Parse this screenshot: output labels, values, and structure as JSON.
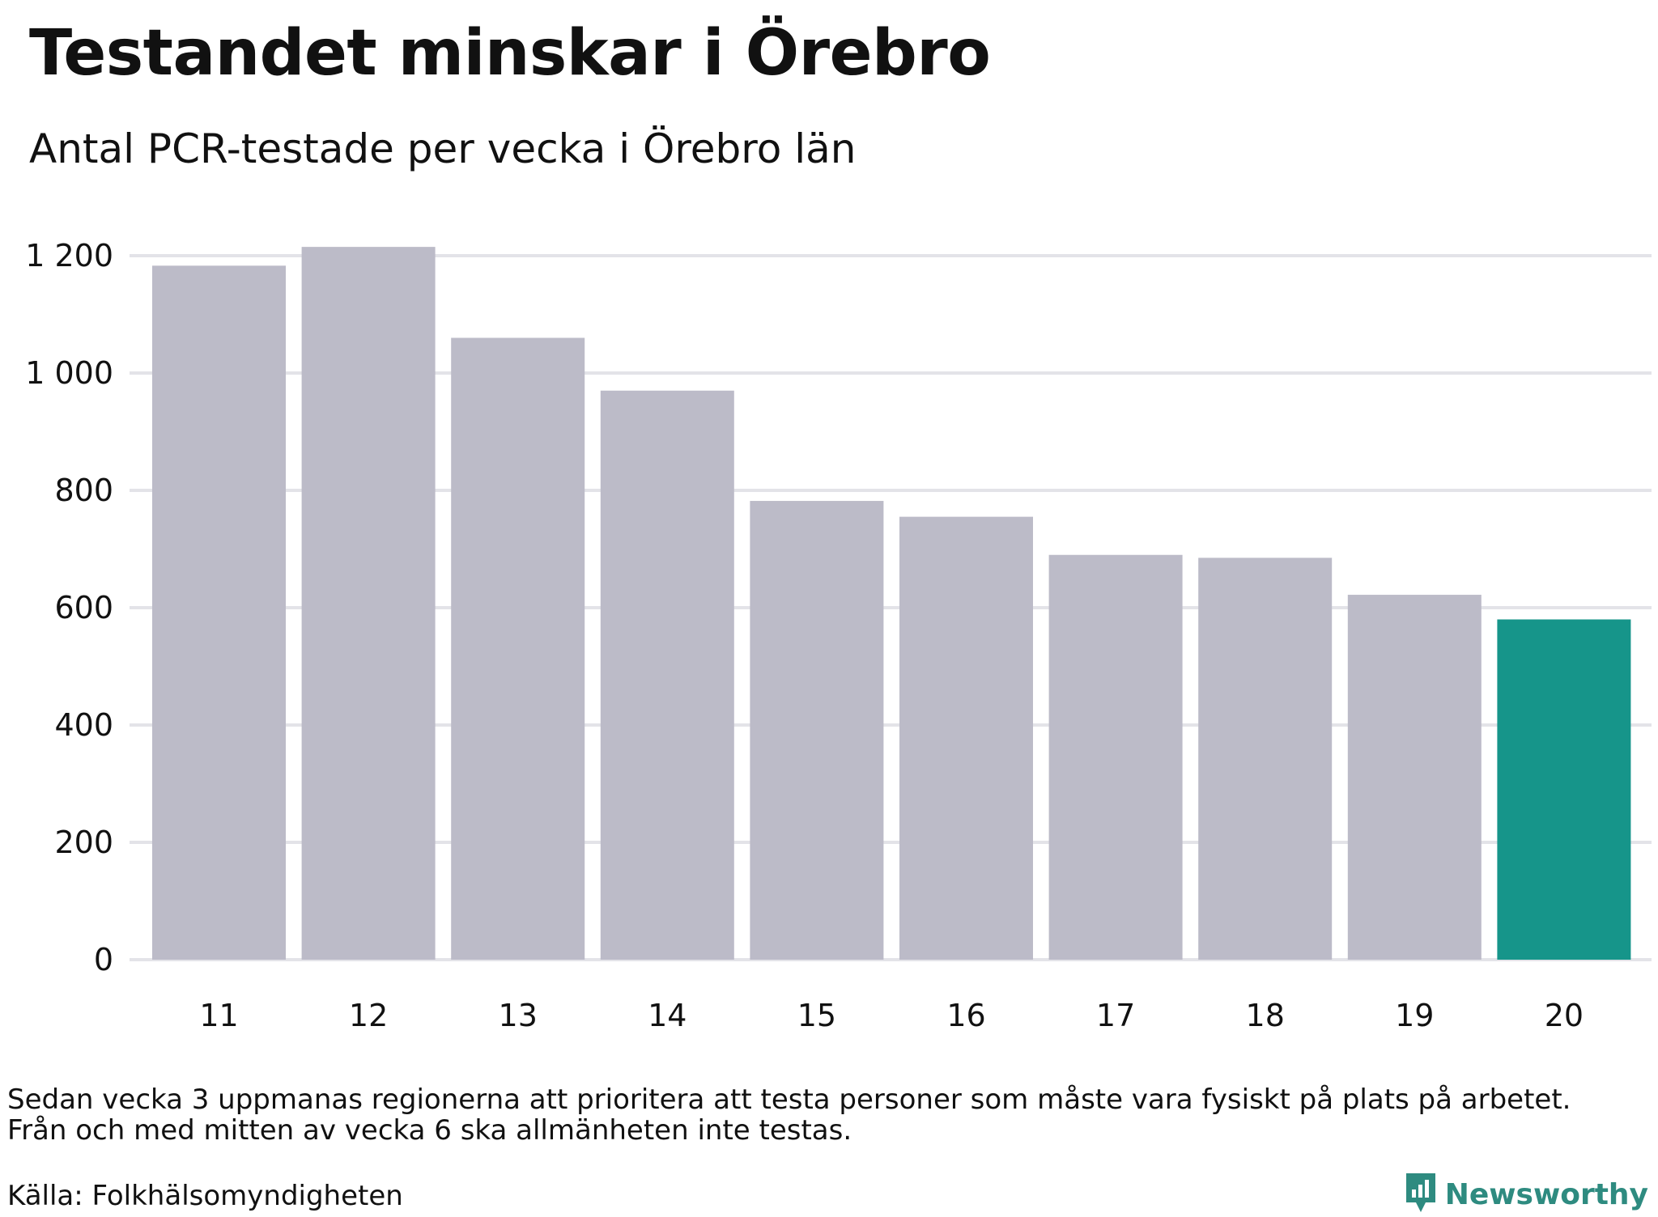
{
  "title": "Testandet minskar i Örebro",
  "subtitle": "Antal PCR-testade per vecka i Örebro län",
  "note_lines": [
    "Sedan vecka 3 uppmanas regionerna att prioritera att testa personer som måste vara fysiskt på plats på arbetet.",
    "Från och med mitten av vecka 6 ska allmänheten inte testas."
  ],
  "source": "Källa: Folkhälsomyndigheten",
  "brand": {
    "name": "Newsworthy",
    "icon": "newsworthy-logo-icon"
  },
  "colors": {
    "bar": "#bcbbc8",
    "highlight": "#16958a",
    "grid": "#e3e3e8",
    "brand": "#2e8b80"
  },
  "chart_data": {
    "type": "bar",
    "categories": [
      "11",
      "12",
      "13",
      "14",
      "15",
      "16",
      "17",
      "18",
      "19",
      "20"
    ],
    "values": [
      1183,
      1215,
      1060,
      970,
      782,
      755,
      690,
      685,
      622,
      580
    ],
    "highlight_index": 9,
    "title": "",
    "xlabel": "",
    "ylabel": "",
    "ylim": [
      0,
      1200
    ],
    "yticks": [
      0,
      200,
      400,
      600,
      800,
      1000,
      1200
    ],
    "ytick_labels": [
      "0",
      "200",
      "400",
      "600",
      "800",
      "1 000",
      "1 200"
    ],
    "grid": true,
    "legend": "none"
  }
}
